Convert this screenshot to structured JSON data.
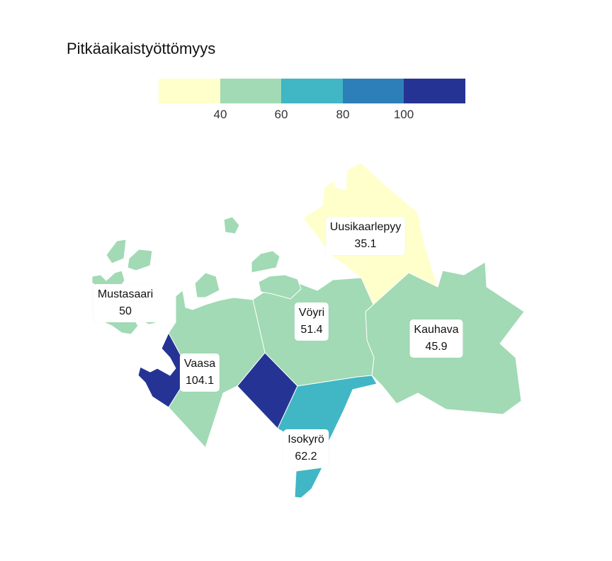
{
  "title": "Pitkäaikaistyöttömyys",
  "legend": {
    "colors": [
      "#ffffcc",
      "#a1dab4",
      "#41b6c4",
      "#2c7fb8",
      "#253494"
    ],
    "ticks": [
      "40",
      "60",
      "80",
      "100"
    ]
  },
  "regions": [
    {
      "name": "Uusikaarlepyy",
      "value": "35.1",
      "color": "#ffffcc"
    },
    {
      "name": "Mustasaari",
      "value": "50",
      "color": "#a1dab4"
    },
    {
      "name": "Vöyri",
      "value": "51.4",
      "color": "#a1dab4"
    },
    {
      "name": "Kauhava",
      "value": "45.9",
      "color": "#a1dab4"
    },
    {
      "name": "Vaasa",
      "value": "104.1",
      "color": "#253494"
    },
    {
      "name": "Isokyrö",
      "value": "62.2",
      "color": "#41b6c4"
    }
  ]
}
